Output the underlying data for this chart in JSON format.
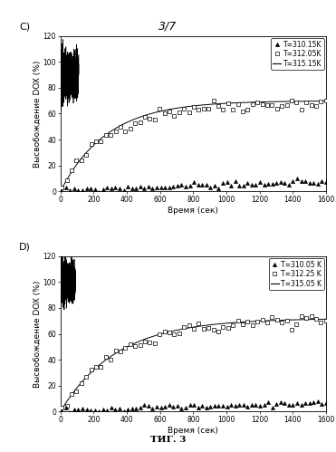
{
  "title": "3/7",
  "fig_label": "ΤИГ. 3",
  "panel_C": {
    "label": "C)",
    "legend": [
      {
        "label": "T=310.15K",
        "marker": "^",
        "filled": true,
        "markersize": 3
      },
      {
        "label": "T=312.05K",
        "marker": "s",
        "filled": false,
        "markersize": 3.5
      },
      {
        "label": "T=315.15K",
        "marker": "none",
        "linestyle": "-"
      }
    ],
    "xlabel": "Время (сек)",
    "ylabel": "Высвобождение DOX (%)",
    "xlim": [
      0,
      1600
    ],
    "ylim": [
      0,
      120
    ],
    "xticks": [
      0,
      200,
      400,
      600,
      800,
      1000,
      1200,
      1400,
      1600
    ],
    "yticks": [
      0,
      20,
      40,
      60,
      80,
      100,
      120
    ],
    "noise_x_end": 110,
    "noise_y_mean": 90,
    "noise_amplitude": 15,
    "curve1_plateau": 13,
    "curve1_tau": 2000,
    "curve2_plateau": 68,
    "curve2_tau": 280,
    "curve3_plateau": 70,
    "curve3_tau": 280
  },
  "panel_D": {
    "label": "D)",
    "legend": [
      {
        "label": "T=310.05 K",
        "marker": "^",
        "filled": true,
        "markersize": 3
      },
      {
        "label": "T=312.25 K",
        "marker": "s",
        "filled": false,
        "markersize": 3.5
      },
      {
        "label": "T=315.05 K",
        "marker": "none",
        "linestyle": "-"
      }
    ],
    "xlabel": "Время (сек)",
    "ylabel": "Высвобождение DOX (%)",
    "xlim": [
      0,
      1600
    ],
    "ylim": [
      0,
      120
    ],
    "xticks": [
      0,
      200,
      400,
      600,
      800,
      1000,
      1200,
      1400,
      1600
    ],
    "yticks": [
      0,
      20,
      40,
      60,
      80,
      100,
      120
    ],
    "noise_x_end": 90,
    "noise_y_mean": 100,
    "noise_amplitude": 12,
    "curve1_plateau": 11,
    "curve1_tau": 2000,
    "curve2_plateau": 70,
    "curve2_tau": 340,
    "curve3_plateau": 72,
    "curve3_tau": 340
  },
  "background_color": "#ffffff",
  "title_font_size": 9,
  "label_font_size": 6.5,
  "tick_font_size": 5.5,
  "panel_label_fontsize": 8
}
